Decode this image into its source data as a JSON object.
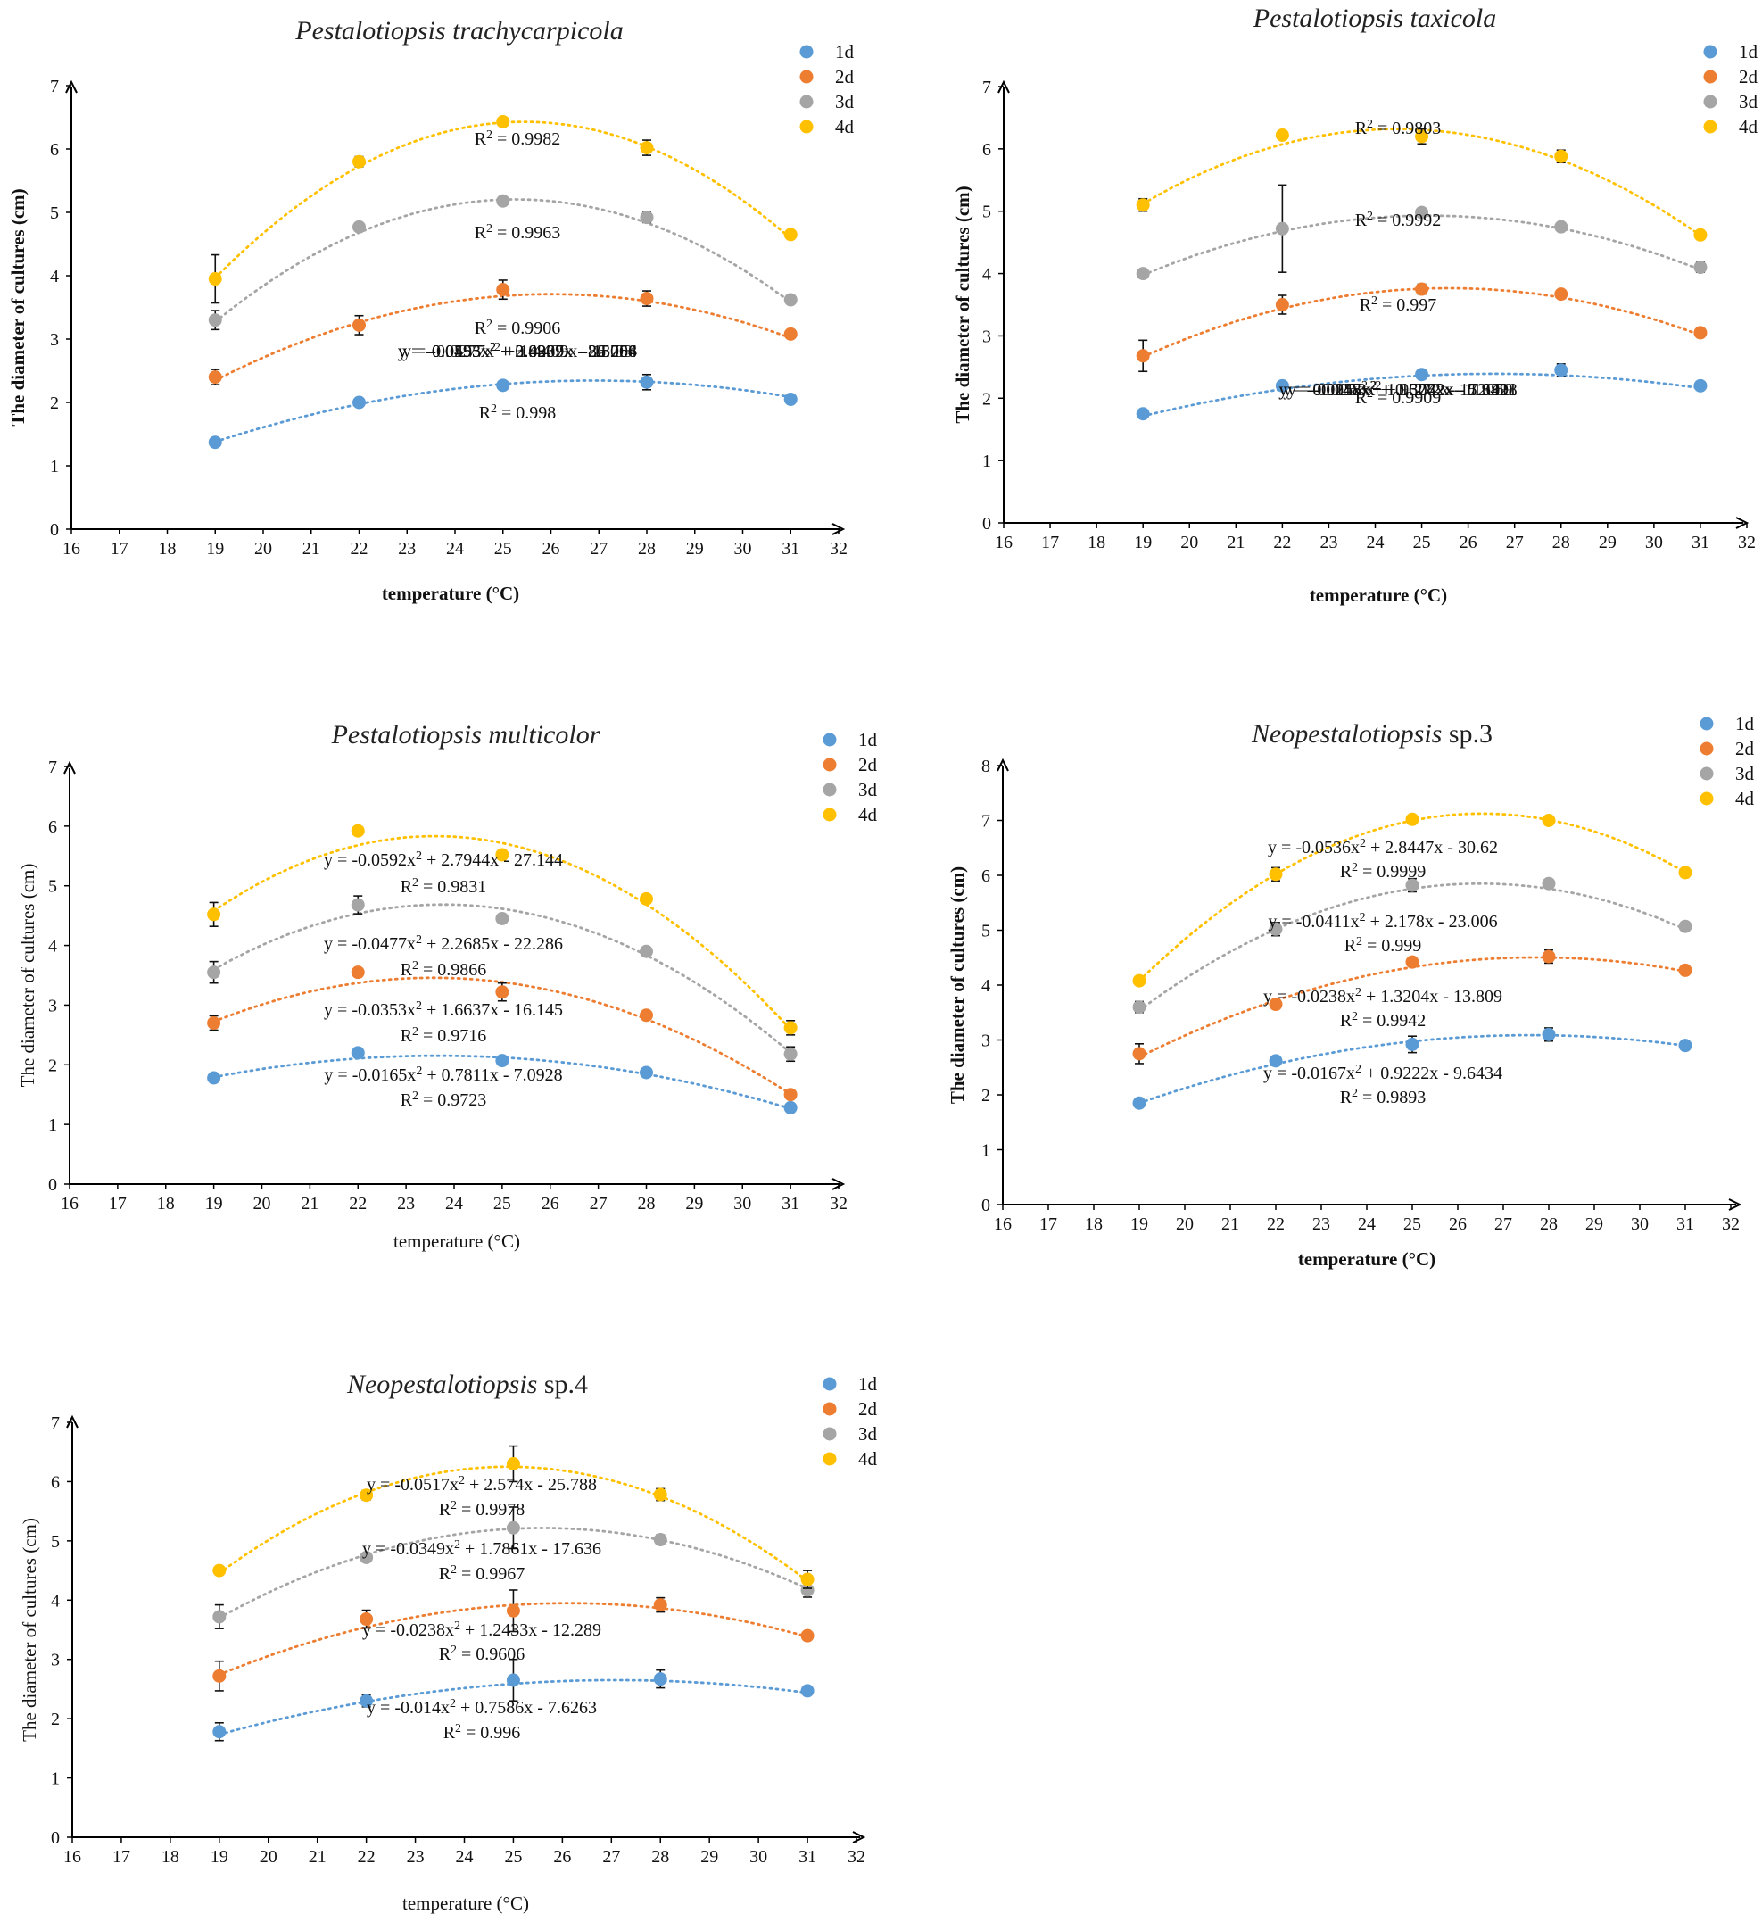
{
  "chart_data": [
    {
      "type": "scatter",
      "title": "Pestalotiopsis trachycarpicola",
      "title_suffix": "",
      "xlabel": "temperature (°C)",
      "ylabel": "The diameter of cultures (cm)",
      "xlim": [
        16,
        32
      ],
      "ylim": [
        0,
        7
      ],
      "xticks": [
        16,
        17,
        18,
        19,
        20,
        21,
        22,
        23,
        24,
        25,
        26,
        27,
        28,
        29,
        30,
        31,
        32
      ],
      "yticks": [
        0,
        1,
        2,
        3,
        4,
        5,
        6,
        7
      ],
      "legend": "top-right",
      "trendline": "polynomial order 2",
      "series": [
        {
          "name": "1d",
          "color": "#5b9bd5",
          "x": [
            19,
            22,
            25,
            28,
            31
          ],
          "y": [
            1.37,
            2.0,
            2.27,
            2.32,
            2.05
          ],
          "err": [
            0.05,
            0.05,
            0.05,
            0.12,
            0.05
          ],
          "fit": {
            "a": -0.0155,
            "b": 0.8339,
            "c": -8.8706
          },
          "equation": "y = -0.0155x2 + 0.8339x - 8.8706",
          "r2": "R2 = 0.998"
        },
        {
          "name": "2d",
          "color": "#ed7d31",
          "x": [
            19,
            22,
            25,
            28,
            31
          ],
          "y": [
            2.4,
            3.22,
            3.78,
            3.64,
            3.08
          ],
          "err": [
            0.12,
            0.15,
            0.15,
            0.12,
            0.05
          ],
          "fit": {
            "a": -0.0277,
            "b": 1.4409,
            "c": -15.03
          },
          "equation": "y = -0.0277x2 + 1.4409x - 15.03",
          "r2": "R2 = 0.9906"
        },
        {
          "name": "3d",
          "color": "#a5a5a5",
          "x": [
            19,
            22,
            25,
            28,
            31
          ],
          "y": [
            3.3,
            4.77,
            5.18,
            4.92,
            3.62
          ],
          "err": [
            0.15,
            0.05,
            0.05,
            0.08,
            0.05
          ],
          "fit": {
            "a": -0.0493,
            "b": 2.4907,
            "c": -26.254
          },
          "equation": "y = -0.0493x2 + 2.4907x - 26.254",
          "r2": "R2 = 0.9963"
        },
        {
          "name": "4d",
          "color": "#ffc000",
          "x": [
            19,
            22,
            25,
            28,
            31
          ],
          "y": [
            3.95,
            5.8,
            6.43,
            6.02,
            4.65
          ],
          "err": [
            0.38,
            0.08,
            0.05,
            0.12,
            0.05
          ],
          "fit": {
            "a": -0.0595,
            "b": 3.0269,
            "c": -32.068
          },
          "equation": "y = -0.0595x2 + 3.0269x - 32.068",
          "r2": "R2 = 0.9982"
        }
      ]
    },
    {
      "type": "scatter",
      "title": "Pestalotiopsis taxicola",
      "title_suffix": "",
      "xlabel": "temperature (°C)",
      "ylabel": "The diameter of cultures (cm)",
      "xlim": [
        16,
        32
      ],
      "ylim": [
        0,
        7
      ],
      "xticks": [
        16,
        17,
        18,
        19,
        20,
        21,
        22,
        23,
        24,
        25,
        26,
        27,
        28,
        29,
        30,
        31,
        32
      ],
      "yticks": [
        0,
        1,
        2,
        3,
        4,
        5,
        6,
        7
      ],
      "legend": "top-right",
      "trendline": "polynomial order 2",
      "series": [
        {
          "name": "1d",
          "color": "#5b9bd5",
          "x": [
            19,
            22,
            25,
            28,
            31
          ],
          "y": [
            1.75,
            2.2,
            2.38,
            2.45,
            2.2
          ],
          "err": [
            0.05,
            0.05,
            0.05,
            0.1,
            0.05
          ],
          "fit": {
            "a": -0.0118,
            "b": 0.6272,
            "c": -5.9428
          },
          "equation": "y = -0.0118x2 + 0.6272x - 5.9428",
          "r2": "R2 = 0.9909"
        },
        {
          "name": "2d",
          "color": "#ed7d31",
          "x": [
            19,
            22,
            25,
            28,
            31
          ],
          "y": [
            2.68,
            3.5,
            3.75,
            3.67,
            3.05
          ],
          "err": [
            0.25,
            0.15,
            0.08,
            0.05,
            0.05
          ],
          "fit": {
            "a": -0.0255,
            "b": 1.3042,
            "c": -12.911
          },
          "equation": "y = -0.0255x2 + 1.3042x - 12.911",
          "r2": "R2 = 0.997"
        },
        {
          "name": "3d",
          "color": "#a5a5a5",
          "x": [
            19,
            22,
            25,
            28,
            31
          ],
          "y": [
            4.0,
            4.72,
            4.98,
            4.75,
            4.1
          ],
          "err": [
            0.05,
            0.7,
            0.05,
            0.05,
            0.08
          ],
          "fit": {
            "a": -0.0253,
            "b": 1.272,
            "c": -11.059
          },
          "equation": "y = -0.0253x2 + 1.272x - 11.059",
          "r2": "R2 = 0.9992"
        },
        {
          "name": "4d",
          "color": "#ffc000",
          "x": [
            19,
            22,
            25,
            28,
            31
          ],
          "y": [
            5.1,
            6.22,
            6.2,
            5.88,
            4.62
          ],
          "err": [
            0.1,
            0.05,
            0.12,
            0.1,
            0.05
          ],
          "fit": {
            "a": -0.04,
            "b": 1.9578,
            "c": -17.639
          },
          "equation": "y = -0.04x2 + 1.9578x - 17.639",
          "r2": "R2 = 0.9803"
        }
      ]
    },
    {
      "type": "scatter",
      "title": "Pestalotiopsis multicolor",
      "title_suffix": "",
      "xlabel": "temperature (°C)",
      "ylabel": "The diameter of cultures (cm)",
      "xlim": [
        16,
        32
      ],
      "ylim": [
        0,
        7
      ],
      "xticks": [
        16,
        17,
        18,
        19,
        20,
        21,
        22,
        23,
        24,
        25,
        26,
        27,
        28,
        29,
        30,
        31,
        32
      ],
      "yticks": [
        0,
        1,
        2,
        3,
        4,
        5,
        6,
        7
      ],
      "legend": "top-right",
      "trendline": "polynomial order 2",
      "series": [
        {
          "name": "1d",
          "color": "#5b9bd5",
          "x": [
            19,
            22,
            25,
            28,
            31
          ],
          "y": [
            1.78,
            2.2,
            2.07,
            1.87,
            1.28
          ],
          "err": [
            0.05,
            0.05,
            0.05,
            0.05,
            0.05
          ],
          "fit": {
            "a": -0.0165,
            "b": 0.7811,
            "c": -7.0928
          },
          "equation": "y = -0.0165x2 + 0.7811x - 7.0928",
          "r2": "R2 = 0.9723"
        },
        {
          "name": "2d",
          "color": "#ed7d31",
          "x": [
            19,
            22,
            25,
            28,
            31
          ],
          "y": [
            2.7,
            3.55,
            3.22,
            2.83,
            1.5
          ],
          "err": [
            0.12,
            0.05,
            0.15,
            0.05,
            0.05
          ],
          "fit": {
            "a": -0.0353,
            "b": 1.6637,
            "c": -16.145
          },
          "equation": "y = -0.0353x2 + 1.6637x - 16.145",
          "r2": "R2 = 0.9716"
        },
        {
          "name": "3d",
          "color": "#a5a5a5",
          "x": [
            19,
            22,
            25,
            28,
            31
          ],
          "y": [
            3.55,
            4.68,
            4.45,
            3.9,
            2.18
          ],
          "err": [
            0.18,
            0.15,
            0.05,
            0.05,
            0.12
          ],
          "fit": {
            "a": -0.0477,
            "b": 2.2685,
            "c": -22.286
          },
          "equation": "y = -0.0477x2 + 2.2685x - 22.286",
          "r2": "R2 = 0.9866"
        },
        {
          "name": "4d",
          "color": "#ffc000",
          "x": [
            19,
            22,
            25,
            28,
            31
          ],
          "y": [
            4.52,
            5.92,
            5.52,
            4.78,
            2.62
          ],
          "err": [
            0.2,
            0.05,
            0.05,
            0.05,
            0.12
          ],
          "fit": {
            "a": -0.0592,
            "b": 2.7944,
            "c": -27.144
          },
          "equation": "y = -0.0592x2 + 2.7944x - 27.144",
          "r2": "R2 = 0.9831"
        }
      ]
    },
    {
      "type": "scatter",
      "title": "Neopestalotiopsis",
      "title_suffix": " sp.3",
      "xlabel": "temperature (°C)",
      "ylabel": "The diameter of cultures (cm)",
      "xlim": [
        16,
        32
      ],
      "ylim": [
        0,
        8
      ],
      "xticks": [
        16,
        17,
        18,
        19,
        20,
        21,
        22,
        23,
        24,
        25,
        26,
        27,
        28,
        29,
        30,
        31,
        32
      ],
      "yticks": [
        0,
        1,
        2,
        3,
        4,
        5,
        6,
        7,
        8
      ],
      "legend": "top-right",
      "trendline": "polynomial order 2",
      "series": [
        {
          "name": "1d",
          "color": "#5b9bd5",
          "x": [
            19,
            22,
            25,
            28,
            31
          ],
          "y": [
            1.85,
            2.62,
            2.92,
            3.1,
            2.9
          ],
          "err": [
            0.05,
            0.05,
            0.15,
            0.12,
            0.05
          ],
          "fit": {
            "a": -0.0167,
            "b": 0.9222,
            "c": -9.6434
          },
          "equation": "y = -0.0167x2 + 0.9222x - 9.6434",
          "r2": "R2 = 0.9893"
        },
        {
          "name": "2d",
          "color": "#ed7d31",
          "x": [
            19,
            22,
            25,
            28,
            31
          ],
          "y": [
            2.75,
            3.65,
            4.42,
            4.52,
            4.27
          ],
          "err": [
            0.18,
            0.05,
            0.05,
            0.12,
            0.05
          ],
          "fit": {
            "a": -0.0238,
            "b": 1.3204,
            "c": -13.809
          },
          "equation": "y = -0.0238x2 + 1.3204x - 13.809",
          "r2": "R2 = 0.9942"
        },
        {
          "name": "3d",
          "color": "#a5a5a5",
          "x": [
            19,
            22,
            25,
            28,
            31
          ],
          "y": [
            3.6,
            5.02,
            5.82,
            5.85,
            5.07
          ],
          "err": [
            0.1,
            0.12,
            0.12,
            0.05,
            0.05
          ],
          "fit": {
            "a": -0.0411,
            "b": 2.178,
            "c": -23.006
          },
          "equation": "y = -0.0411x2 + 2.178x - 23.006",
          "r2": "R2 = 0.999"
        },
        {
          "name": "4d",
          "color": "#ffc000",
          "x": [
            19,
            22,
            25,
            28,
            31
          ],
          "y": [
            4.08,
            6.02,
            7.02,
            7.0,
            6.05
          ],
          "err": [
            0.05,
            0.12,
            0.05,
            0.05,
            0.08
          ],
          "fit": {
            "a": -0.0536,
            "b": 2.8447,
            "c": -30.62
          },
          "equation": "y = -0.0536x2 + 2.8447x - 30.62",
          "r2": "R2 = 0.9999"
        }
      ]
    },
    {
      "type": "scatter",
      "title": "Neopestalotiopsis",
      "title_suffix": " sp.4",
      "xlabel": "temperature (°C)",
      "ylabel": "The diameter of cultures (cm)",
      "xlim": [
        16,
        32
      ],
      "ylim": [
        0,
        7
      ],
      "xticks": [
        16,
        17,
        18,
        19,
        20,
        21,
        22,
        23,
        24,
        25,
        26,
        27,
        28,
        29,
        30,
        31,
        32
      ],
      "yticks": [
        0,
        1,
        2,
        3,
        4,
        5,
        6,
        7
      ],
      "legend": "top-right",
      "trendline": "polynomial order 2",
      "series": [
        {
          "name": "1d",
          "color": "#5b9bd5",
          "x": [
            19,
            22,
            25,
            28,
            31
          ],
          "y": [
            1.78,
            2.3,
            2.65,
            2.67,
            2.47
          ],
          "err": [
            0.15,
            0.1,
            0.35,
            0.15,
            0.05
          ],
          "fit": {
            "a": -0.014,
            "b": 0.7586,
            "c": -7.6263
          },
          "equation": "y = -0.014x2 + 0.7586x - 7.6263",
          "r2": "R2 = 0.996"
        },
        {
          "name": "2d",
          "color": "#ed7d31",
          "x": [
            19,
            22,
            25,
            28,
            31
          ],
          "y": [
            2.72,
            3.68,
            3.82,
            3.92,
            3.4
          ],
          "err": [
            0.25,
            0.15,
            0.35,
            0.12,
            0.05
          ],
          "fit": {
            "a": -0.0238,
            "b": 1.2433,
            "c": -12.289
          },
          "equation": "y = -0.0238x2 + 1.2433x - 12.289",
          "r2": "R2 = 0.9606"
        },
        {
          "name": "3d",
          "color": "#a5a5a5",
          "x": [
            19,
            22,
            25,
            28,
            31
          ],
          "y": [
            3.72,
            4.72,
            5.22,
            5.02,
            4.17
          ],
          "err": [
            0.2,
            0.05,
            0.35,
            0.08,
            0.12
          ],
          "fit": {
            "a": -0.0349,
            "b": 1.7861,
            "c": -17.636
          },
          "equation": "y = -0.0349x2 + 1.7861x - 17.636",
          "r2": "R2 = 0.9967"
        },
        {
          "name": "4d",
          "color": "#ffc000",
          "x": [
            19,
            22,
            25,
            28,
            31
          ],
          "y": [
            4.5,
            5.77,
            6.3,
            5.78,
            4.35
          ],
          "err": [
            0.05,
            0.08,
            0.3,
            0.1,
            0.15
          ],
          "fit": {
            "a": -0.0517,
            "b": 2.574,
            "c": -25.788
          },
          "equation": "y = -0.0517x2 + 2.574x - 25.788",
          "r2": "R2 = 0.9978"
        }
      ]
    }
  ]
}
